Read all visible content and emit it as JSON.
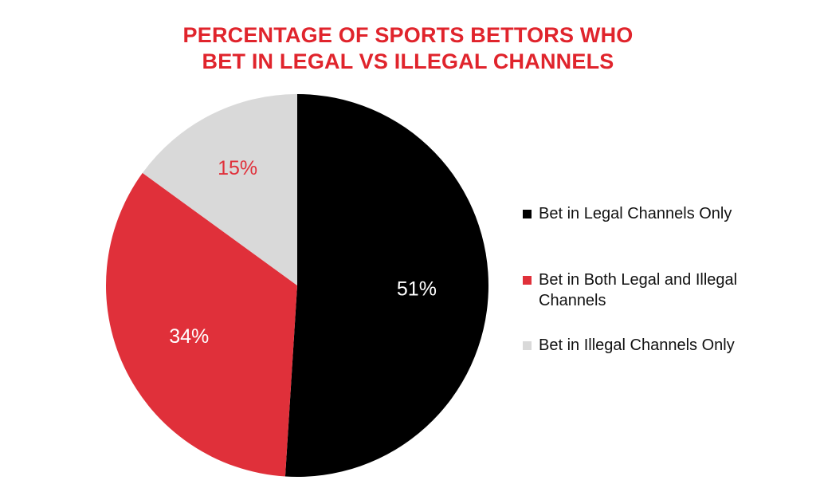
{
  "title_lines": [
    "PERCENTAGE OF SPORTS BETTORS WHO",
    "BET IN LEGAL VS ILLEGAL CHANNELS"
  ],
  "colors": {
    "title": "#e0242c",
    "legal_only": "#000000",
    "both": "#e0303a",
    "illegal_only": "#d9d9d9",
    "label_light": "#ffffff",
    "label_red": "#e0303a"
  },
  "chart_data": {
    "type": "pie",
    "title": "PERCENTAGE OF SPORTS BETTORS WHO BET IN LEGAL VS ILLEGAL CHANNELS",
    "start": "12 o'clock",
    "direction": "clockwise",
    "slices": [
      {
        "label": "Bet in Legal Channels Only",
        "value": 51,
        "display": "51%",
        "color": "#000000",
        "label_color": "#ffffff"
      },
      {
        "label": "Bet in Both Legal and Illegal Channels",
        "value": 34,
        "display": "34%",
        "color": "#e0303a",
        "label_color": "#ffffff"
      },
      {
        "label": "Bet in Illegal Channels Only",
        "value": 15,
        "display": "15%",
        "color": "#d9d9d9",
        "label_color": "#e0303a"
      }
    ],
    "legend_position": "right"
  },
  "legend": [
    {
      "label": "Bet in Legal Channels Only",
      "color": "#000000"
    },
    {
      "label": "Bet in Both Legal and Illegal Channels",
      "color": "#e0303a"
    },
    {
      "label": "Bet in Illegal Channels Only",
      "color": "#d9d9d9"
    }
  ]
}
